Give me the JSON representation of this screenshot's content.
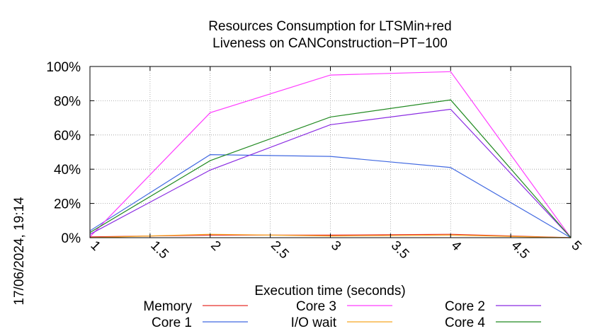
{
  "timestamp": "17/06/2024, 19:14",
  "chart_data": {
    "type": "line",
    "title": [
      "Resources Consumption for LTSMin+red",
      "Liveness on CANConstruction−PT−100"
    ],
    "xlabel": "Execution time (seconds)",
    "ylabel": "",
    "xlim": [
      1,
      5
    ],
    "ylim": [
      0,
      100
    ],
    "x_ticks": [
      1,
      1.5,
      2,
      2.5,
      3,
      3.5,
      4,
      4.5,
      5
    ],
    "x_tick_labels": [
      "1",
      "1.5",
      "2",
      "2.5",
      "3",
      "3.5",
      "4",
      "4.5",
      "5"
    ],
    "y_ticks": [
      0,
      20,
      40,
      60,
      80,
      100
    ],
    "y_tick_labels": [
      "0%",
      "20%",
      "40%",
      "60%",
      "80%",
      "100%"
    ],
    "grid": true,
    "legend_position": "bottom",
    "series": [
      {
        "name": "Memory",
        "color": "#e8312a",
        "x": [
          1,
          2,
          3,
          4,
          5
        ],
        "values": [
          0.5,
          1.5,
          1.5,
          2.0,
          0
        ]
      },
      {
        "name": "Core 1",
        "color": "#4169e1",
        "x": [
          1,
          2,
          3,
          4,
          5
        ],
        "values": [
          4,
          48.5,
          47.5,
          41,
          0
        ]
      },
      {
        "name": "Core 3",
        "color": "#ff3cff",
        "x": [
          1,
          2,
          3,
          4,
          5
        ],
        "values": [
          0.5,
          73,
          95,
          97,
          0
        ]
      },
      {
        "name": "I/O wait",
        "color": "#f5a623",
        "x": [
          1,
          2,
          3,
          4,
          5
        ],
        "values": [
          0,
          2.0,
          1.0,
          1.5,
          0
        ]
      },
      {
        "name": "Core 2",
        "color": "#8a2be2",
        "x": [
          1,
          2,
          3,
          4,
          5
        ],
        "values": [
          2,
          39.5,
          66,
          75,
          0
        ]
      },
      {
        "name": "Core 4",
        "color": "#218a21",
        "x": [
          1,
          2,
          3,
          4,
          5
        ],
        "values": [
          3,
          45,
          70.5,
          80.5,
          0
        ]
      }
    ]
  }
}
